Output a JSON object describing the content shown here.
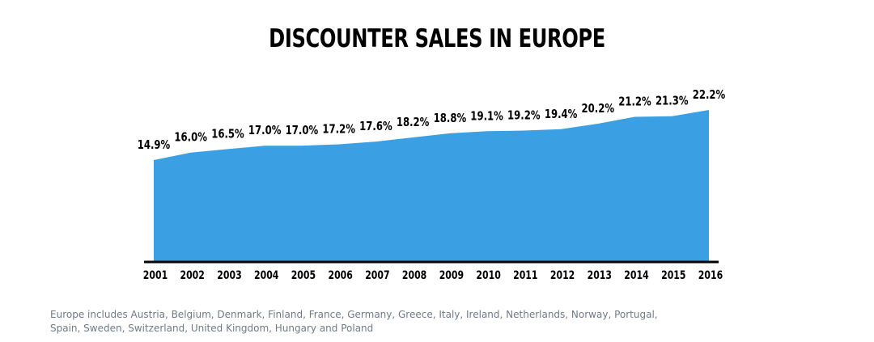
{
  "chart_data": {
    "type": "area",
    "title": "DISCOUNTER SALES IN EUROPE",
    "xlabel": "",
    "ylabel": "",
    "categories": [
      "2001",
      "2002",
      "2003",
      "2004",
      "2005",
      "2006",
      "2007",
      "2008",
      "2009",
      "2010",
      "2011",
      "2012",
      "2013",
      "2014",
      "2015",
      "2016"
    ],
    "values": [
      14.9,
      16.0,
      16.5,
      17.0,
      17.0,
      17.2,
      17.6,
      18.2,
      18.8,
      19.1,
      19.2,
      19.4,
      20.2,
      21.2,
      21.3,
      22.2
    ],
    "value_labels": [
      "14.9%",
      "16.0%",
      "16.5%",
      "17.0%",
      "17.0%",
      "17.2%",
      "17.6%",
      "18.2%",
      "18.8%",
      "19.1%",
      "19.2%",
      "19.4%",
      "20.2%",
      "21.2%",
      "21.3%",
      "22.2%"
    ],
    "grid": false,
    "legend": "none",
    "colors": {
      "area": "#3b9fe3",
      "axis": "#000000"
    }
  },
  "footnote": "Europe includes Austria, Belgium, Denmark, Finland, France, Germany, Greece, Italy, Ireland, Netherlands, Norway, Portugal, Spain, Sweden, Switzerland, United Kingdom, Hungary and Poland"
}
